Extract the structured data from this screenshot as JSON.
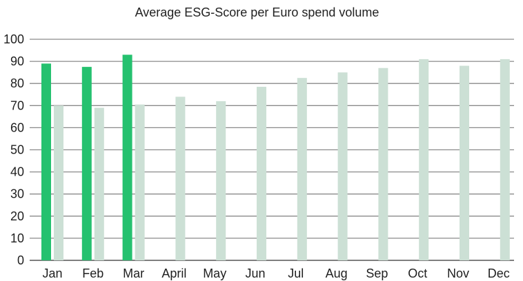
{
  "chart_data": {
    "type": "bar",
    "title": "Average ESG-Score per Euro spend volume",
    "xlabel": "",
    "ylabel": "",
    "categories": [
      "Jan",
      "Feb",
      "Mar",
      "April",
      "May",
      "Jun",
      "Jul",
      "Aug",
      "Sep",
      "Oct",
      "Nov",
      "Dec"
    ],
    "series": [
      {
        "color": "#25c16f",
        "values": [
          89,
          87.5,
          93,
          null,
          null,
          null,
          null,
          null,
          null,
          null,
          null,
          null
        ]
      },
      {
        "color": "#cce0d5",
        "values": [
          70,
          69,
          70.5,
          74,
          72,
          78.5,
          82.5,
          85,
          87,
          91,
          88,
          91
        ]
      }
    ],
    "ylim": [
      0,
      100
    ],
    "yticks": [
      0,
      10,
      20,
      30,
      40,
      50,
      60,
      70,
      80,
      90,
      100
    ],
    "grid": true,
    "legend": "none"
  }
}
